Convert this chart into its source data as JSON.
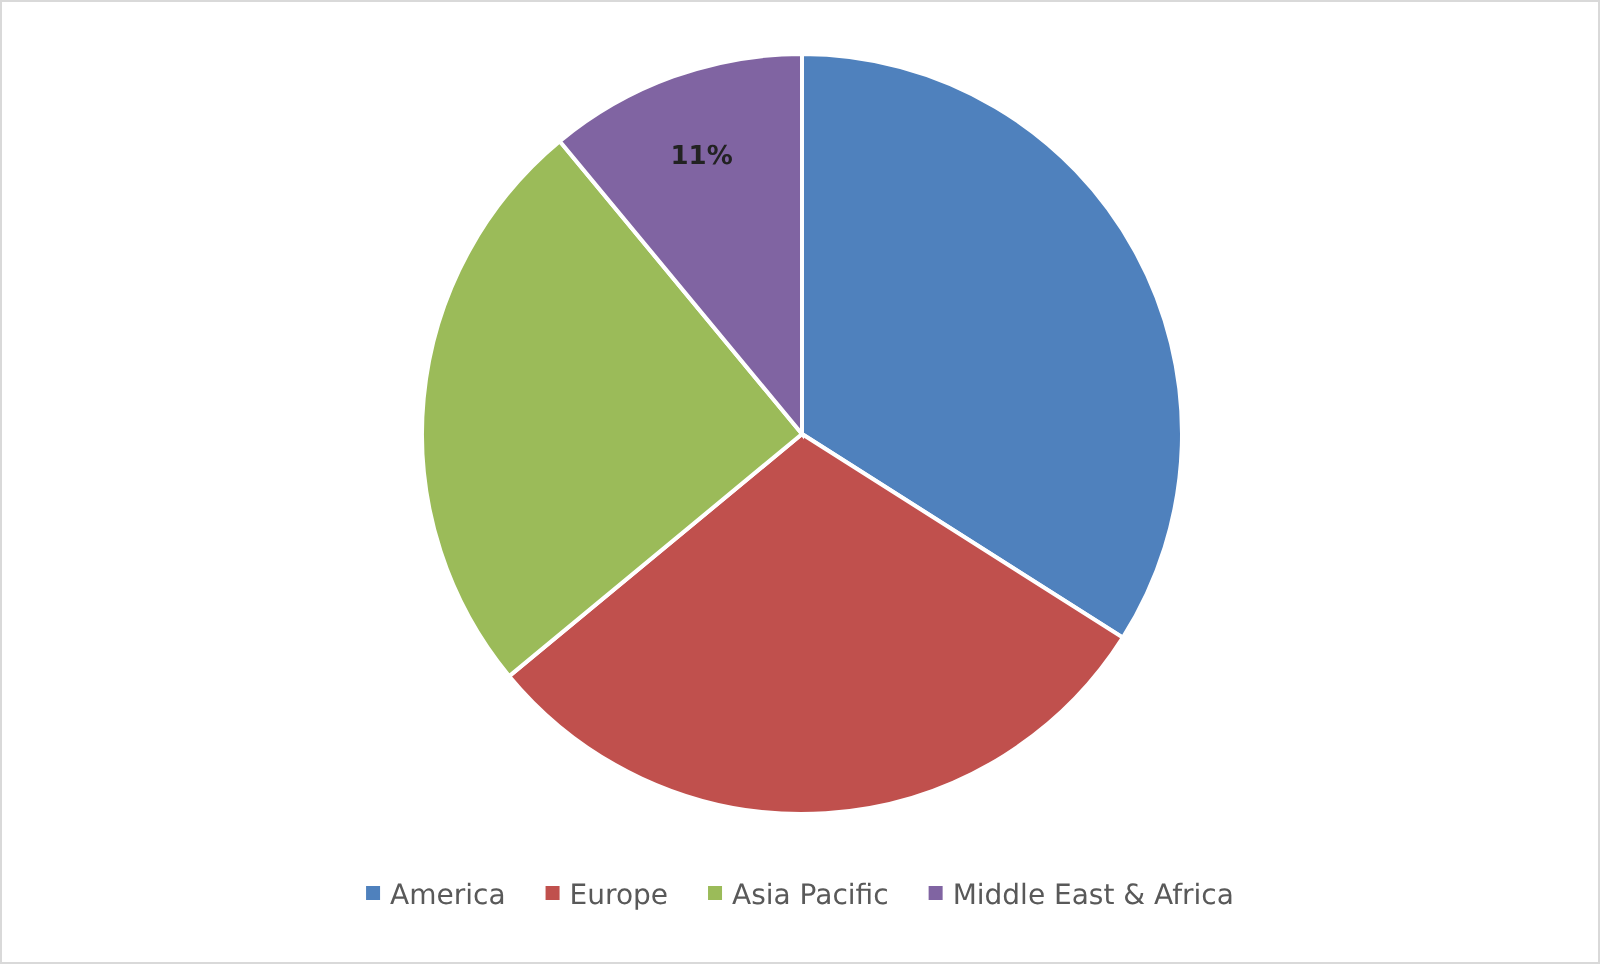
{
  "chart_data": {
    "type": "pie",
    "categories": [
      "America",
      "Europe",
      "Asia Pacific",
      "Middle East & Africa"
    ],
    "values": [
      34,
      30,
      25,
      11
    ],
    "colors": [
      "#4f81bd",
      "#c0504d",
      "#9bbb59",
      "#8064a2"
    ],
    "value_labels": [
      null,
      null,
      null,
      "11%"
    ],
    "legend": "bottom"
  }
}
